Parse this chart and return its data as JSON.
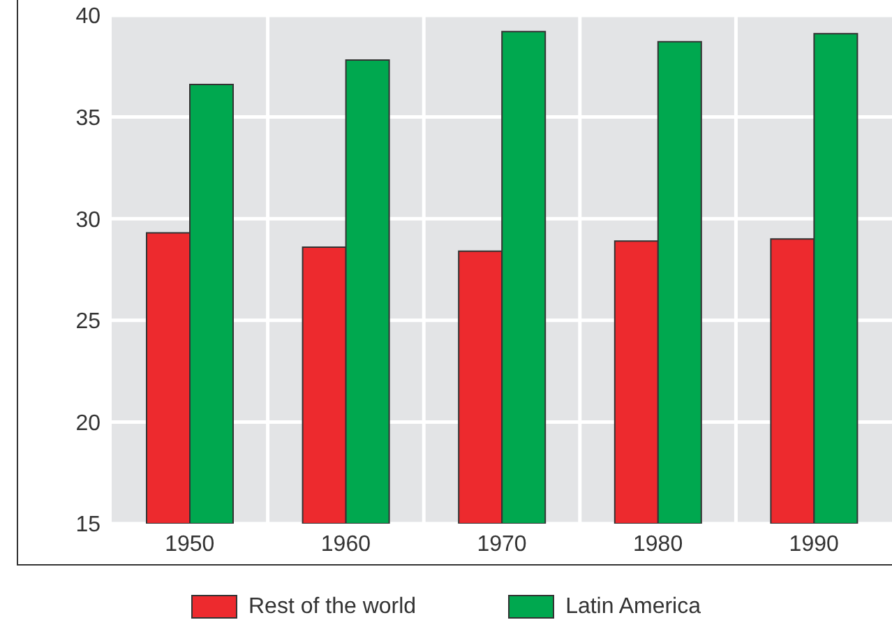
{
  "chart_data": {
    "type": "bar",
    "categories": [
      "1950",
      "1960",
      "1970",
      "1980",
      "1990"
    ],
    "series": [
      {
        "name": "Rest of the world",
        "color": "#ed2a2e",
        "values": [
          29.3,
          28.6,
          28.4,
          28.9,
          29.0
        ]
      },
      {
        "name": "Latin America",
        "color": "#00a84f",
        "values": [
          36.6,
          37.8,
          39.2,
          38.7,
          39.1
        ]
      }
    ],
    "ylim": [
      15,
      40
    ],
    "yticks": [
      15,
      20,
      25,
      30,
      35,
      40
    ],
    "grid": true,
    "legend": "bottom"
  }
}
